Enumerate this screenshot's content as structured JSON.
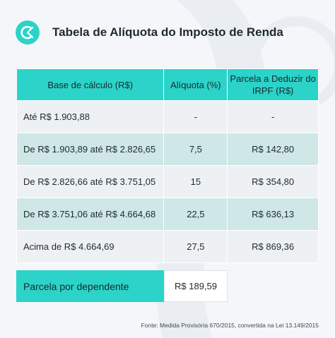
{
  "title": "Tabela de Alíquota do Imposto de Renda",
  "logo_icon": "c-logo-icon",
  "colors": {
    "accent": "#2bd3c8",
    "row_light": "#eef1f4",
    "row_shade": "#cfe7e6"
  },
  "table": {
    "headers": [
      "Base de cálculo (R$)",
      "Alíquota (%)",
      "Parcela a Deduzir do IRPF (R$)"
    ],
    "rows": [
      [
        "Até R$ 1.903,88",
        "-",
        "-"
      ],
      [
        "De R$ 1.903,89 até R$ 2.826,65",
        "7,5",
        "R$ 142,80"
      ],
      [
        "De R$ 2.826,66 até R$ 3.751,05",
        "15",
        "R$ 354,80"
      ],
      [
        "De R$ 3.751,06 até R$ 4.664,68",
        "22,5",
        "R$ 636,13"
      ],
      [
        "Acima de R$ 4.664,69",
        "27,5",
        "R$ 869,36"
      ]
    ]
  },
  "dependent": {
    "label": "Parcela por dependente",
    "value": "R$ 189,59"
  },
  "source": "Fonte: Medida Provisória 670/2015, convertida na Lei 13.149/2015"
}
